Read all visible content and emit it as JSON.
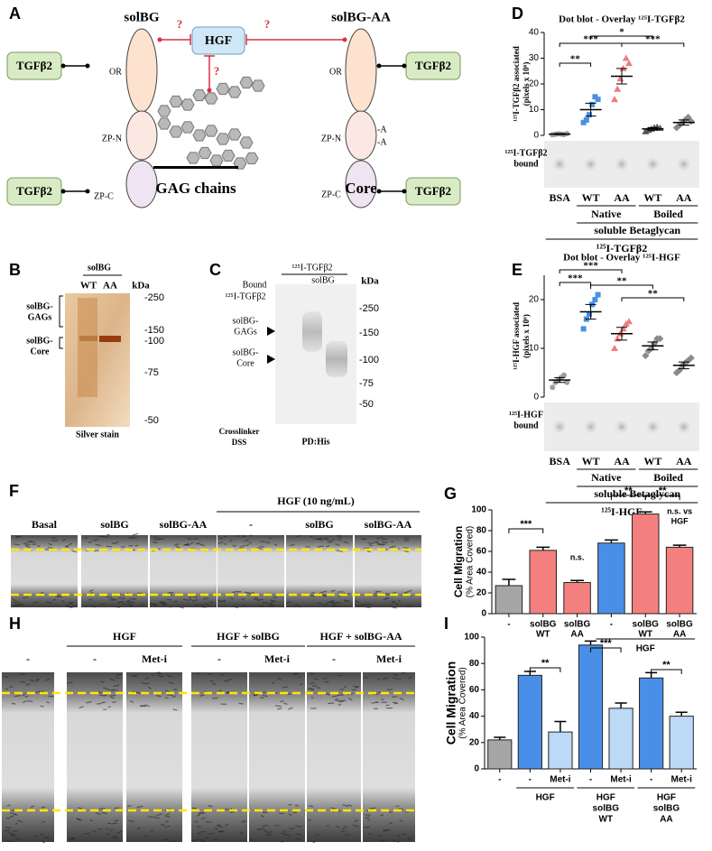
{
  "panels": {
    "A": {
      "letter": "A",
      "solbg": "solBG",
      "solbg_aa": "solBG-AA",
      "hgf": "HGF",
      "question": "?",
      "tgfb2": "TGFβ2",
      "or": "OR",
      "zp_n": "ZP-N",
      "zp_c": "ZP-C",
      "mutation": "-A",
      "gag_chains": "GAG chains",
      "core": "Core"
    },
    "B": {
      "letter": "B",
      "sample": "solBG",
      "lanes": [
        "WT",
        "AA"
      ],
      "kda": "kDa",
      "markers": [
        "-250",
        "-150",
        "-100",
        "-75",
        "-50"
      ],
      "gags": [
        "solBG-",
        "GAGs"
      ],
      "core": [
        "solBG-",
        "Core"
      ],
      "caption": "Silver stain"
    },
    "C": {
      "letter": "C",
      "ligand": "¹²⁵I-TGFβ2",
      "sample": "solBG",
      "lanes": [
        "-",
        "WT",
        "AA"
      ],
      "kda": "kDa",
      "bound": [
        "Bound",
        "¹²⁵I-TGFβ2"
      ],
      "markers": [
        "-250",
        "-150",
        "-100",
        "-75",
        "-50"
      ],
      "gags": [
        "solBG-",
        "GAGs"
      ],
      "core": [
        "solBG-",
        "Core"
      ],
      "crosslinker": [
        "Crosslinker",
        "DSS"
      ],
      "pulldown": "PD:His"
    },
    "D": {
      "letter": "D"
    },
    "E": {
      "letter": "E"
    },
    "F": {
      "letter": "F",
      "treatment": "HGF (10 ng/mL)",
      "conditions": [
        "Basal",
        "solBG",
        "solBG-AA",
        "-",
        "solBG",
        "solBG-AA"
      ]
    },
    "G": {
      "letter": "G"
    },
    "H": {
      "letter": "H",
      "groups": [
        "HGF",
        "HGF + solBG",
        "HGF + solBG-AA"
      ],
      "conditions": [
        "-",
        "-",
        "Met-i",
        "-",
        "Met-i",
        "-",
        "Met-i"
      ]
    },
    "I": {
      "letter": "I"
    }
  },
  "chart_data": [
    {
      "type": "dot",
      "title": "Dot blot - Overlay ¹²⁵I-TGFβ2",
      "ylabel": [
        "¹²⁵I-TGFβ2 associated",
        "(pixels x 10⁶)"
      ],
      "categories": [
        "BSA",
        "WT",
        "AA",
        "WT",
        "AA"
      ],
      "colors": [
        "#9e9e9e",
        "#4a90e2",
        "#f07c7c",
        "#555555",
        "#8a8a8a"
      ],
      "markers": [
        "circle",
        "square",
        "triangle",
        "triangle",
        "diamond"
      ],
      "points": [
        [
          0.2,
          0.4,
          0.6,
          0.5,
          0.3,
          0.7
        ],
        [
          5,
          6,
          8,
          12,
          15,
          14
        ],
        [
          14,
          18,
          22,
          26,
          30,
          28
        ],
        [
          1.5,
          2,
          2.5,
          3,
          3.2,
          2.8
        ],
        [
          3,
          4,
          5,
          6,
          7,
          5.5
        ]
      ],
      "means": [
        0.5,
        10,
        23,
        2.5,
        5
      ],
      "errors": [
        0.2,
        2.5,
        3,
        0.5,
        1
      ],
      "ylim": [
        0,
        40
      ],
      "yticks": [
        0,
        10,
        20,
        30,
        40
      ],
      "significance": [
        [
          "**"
        ],
        [
          "***"
        ],
        [
          "*"
        ],
        [
          "***"
        ]
      ],
      "blot_label": [
        "¹²⁵I-TGFβ2",
        "bound"
      ],
      "groups": [
        "Native",
        "Boiled"
      ],
      "protein": "soluble Betaglycan",
      "ligand": "¹²⁵I-TGFβ2"
    },
    {
      "type": "dot",
      "title": "Dot blot - Overlay ¹²⁵I-HGF",
      "ylabel": [
        "¹²⁵I-HGF associated",
        "(pixels x 10⁶)"
      ],
      "categories": [
        "BSA",
        "WT",
        "AA",
        "WT",
        "AA"
      ],
      "colors": [
        "#9e9e9e",
        "#4a90e2",
        "#f07c7c",
        "#8a8a8a",
        "#8a8a8a"
      ],
      "markers": [
        "circle",
        "square",
        "triangle",
        "diamond",
        "diamond"
      ],
      "points": [
        [
          2,
          3,
          3.5,
          4,
          4.5,
          3
        ],
        [
          14,
          16,
          17,
          19,
          20,
          21
        ],
        [
          10,
          12,
          13,
          14,
          15,
          15.5
        ],
        [
          8.5,
          9.5,
          10,
          11,
          12,
          12
        ],
        [
          5,
          5.5,
          6.5,
          7,
          7.5,
          8
        ]
      ],
      "means": [
        3.5,
        17.5,
        13,
        10.5,
        6.5
      ],
      "errors": [
        0.5,
        1.5,
        1.3,
        0.8,
        0.7
      ],
      "ylim": [
        0,
        25
      ],
      "yticks": [
        0,
        10,
        20
      ],
      "significance": [
        [
          "***"
        ],
        [
          "***"
        ],
        [
          "**"
        ],
        [
          "**"
        ]
      ],
      "blot_label": [
        "¹²⁵I-HGF",
        "bound"
      ],
      "groups": [
        "Native",
        "Boiled"
      ],
      "protein": "soluble Betaglycan",
      "ligand": "¹²⁵I-HGF"
    },
    {
      "type": "bar",
      "ylabel": [
        "Cell Migration",
        "(% Area Covered)"
      ],
      "categories": [
        [
          "-"
        ],
        [
          "solBG",
          "WT"
        ],
        [
          "solBG",
          "AA"
        ],
        [
          "-"
        ],
        [
          "solBG",
          "WT"
        ],
        [
          "solBG",
          "AA"
        ]
      ],
      "values": [
        27,
        61,
        30,
        68,
        96,
        64
      ],
      "errors": [
        6,
        3,
        2,
        3,
        2,
        2
      ],
      "colors": [
        "#a6a6a6",
        "#f47f7f",
        "#f47f7f",
        "#4a8fe7",
        "#f47f7f",
        "#f47f7f"
      ],
      "ylim": [
        0,
        100
      ],
      "yticks": [
        0,
        20,
        40,
        60,
        80,
        100
      ],
      "significance": [
        [
          "***"
        ],
        [
          "n.s."
        ],
        [
          "**"
        ],
        [
          "**"
        ],
        [
          "n.s. vs",
          "HGF"
        ]
      ],
      "groups": [
        [
          "HGF"
        ]
      ]
    },
    {
      "type": "bar",
      "ylabel": [
        "Cell Migration",
        "(% Area Covered)"
      ],
      "categories": [
        [
          "-"
        ],
        [
          "-"
        ],
        [
          "Met-i"
        ],
        [
          "-"
        ],
        [
          "Met-i"
        ],
        [
          "-"
        ],
        [
          "Met-i"
        ]
      ],
      "values": [
        22,
        71,
        28,
        94,
        46,
        69,
        40
      ],
      "errors": [
        2,
        3,
        8,
        3,
        4,
        4,
        3
      ],
      "colors": [
        "#a6a6a6",
        "#4a8fe7",
        "#bcd9f7",
        "#4a8fe7",
        "#bcd9f7",
        "#4a8fe7",
        "#bcd9f7"
      ],
      "ylim": [
        0,
        100
      ],
      "yticks": [
        0,
        20,
        40,
        60,
        80,
        100
      ],
      "significance": [
        [
          "**"
        ],
        [
          "***"
        ],
        [
          "**"
        ]
      ],
      "groups": [
        [
          "HGF"
        ],
        [
          "HGF",
          "solBG",
          "WT"
        ],
        [
          "HGF",
          "solBG",
          "AA"
        ]
      ]
    }
  ]
}
